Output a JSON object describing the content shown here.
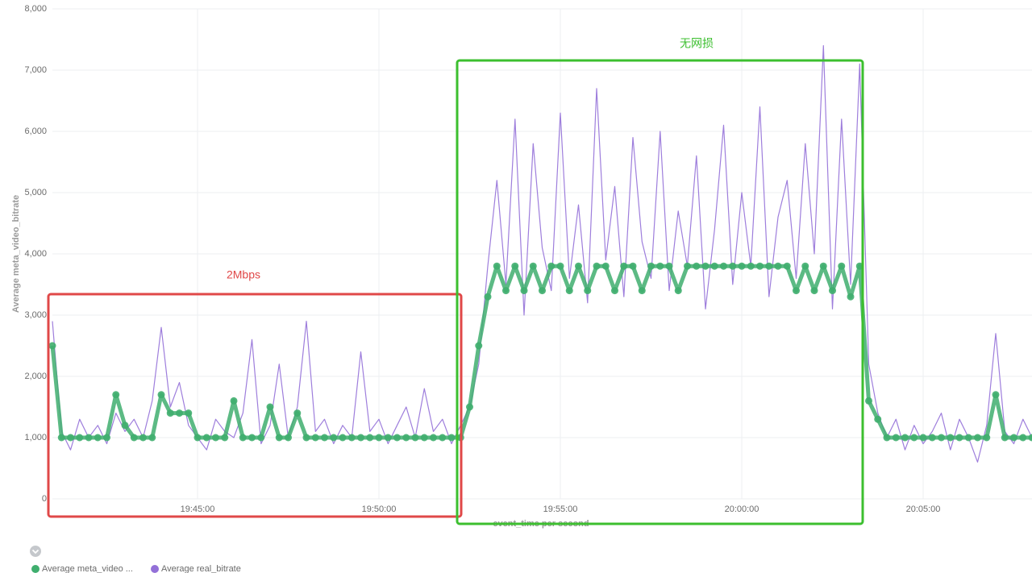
{
  "chart_data": {
    "type": "line",
    "ylabel": "Average meta_video_bitrate",
    "xlabel": "event_time per second",
    "xlim": [
      "19:41:00",
      "20:08:00"
    ],
    "xticks": [
      "19:45:00",
      "19:50:00",
      "19:55:00",
      "20:00:00",
      "20:05:00"
    ],
    "ylim": [
      0,
      8000
    ],
    "yticks": [
      0,
      {
        "value": 1000,
        "label": "1,000"
      },
      {
        "value": 2000,
        "label": "2,000"
      },
      {
        "value": 3000,
        "label": "3,000"
      },
      {
        "value": 4000,
        "label": "4,000"
      },
      {
        "value": 5000,
        "label": "5,000"
      },
      {
        "value": 6000,
        "label": "6,000"
      },
      {
        "value": 7000,
        "label": "7,000"
      },
      {
        "value": 8000,
        "label": "8,000"
      }
    ],
    "grid": true,
    "x": [
      "19:41:00",
      "19:41:15",
      "19:41:30",
      "19:41:45",
      "19:42:00",
      "19:42:15",
      "19:42:30",
      "19:42:45",
      "19:43:00",
      "19:43:15",
      "19:43:30",
      "19:43:45",
      "19:44:00",
      "19:44:15",
      "19:44:30",
      "19:44:45",
      "19:45:00",
      "19:45:15",
      "19:45:30",
      "19:45:45",
      "19:46:00",
      "19:46:15",
      "19:46:30",
      "19:46:45",
      "19:47:00",
      "19:47:15",
      "19:47:30",
      "19:47:45",
      "19:48:00",
      "19:48:15",
      "19:48:30",
      "19:48:45",
      "19:49:00",
      "19:49:15",
      "19:49:30",
      "19:49:45",
      "19:50:00",
      "19:50:15",
      "19:50:30",
      "19:50:45",
      "19:51:00",
      "19:51:15",
      "19:51:30",
      "19:51:45",
      "19:52:00",
      "19:52:15",
      "19:52:30",
      "19:52:45",
      "19:53:00",
      "19:53:15",
      "19:53:30",
      "19:53:45",
      "19:54:00",
      "19:54:15",
      "19:54:30",
      "19:54:45",
      "19:55:00",
      "19:55:15",
      "19:55:30",
      "19:55:45",
      "19:56:00",
      "19:56:15",
      "19:56:30",
      "19:56:45",
      "19:57:00",
      "19:57:15",
      "19:57:30",
      "19:57:45",
      "19:58:00",
      "19:58:15",
      "19:58:30",
      "19:58:45",
      "19:59:00",
      "19:59:15",
      "19:59:30",
      "19:59:45",
      "20:00:00",
      "20:00:15",
      "20:00:30",
      "20:00:45",
      "20:01:00",
      "20:01:15",
      "20:01:30",
      "20:01:45",
      "20:02:00",
      "20:02:15",
      "20:02:30",
      "20:02:45",
      "20:03:00",
      "20:03:15",
      "20:03:30",
      "20:03:45",
      "20:04:00",
      "20:04:15",
      "20:04:30",
      "20:04:45",
      "20:05:00",
      "20:05:15",
      "20:05:30",
      "20:05:45",
      "20:06:00",
      "20:06:15",
      "20:06:30",
      "20:06:45",
      "20:07:00",
      "20:07:15",
      "20:07:30",
      "20:07:45",
      "20:08:00"
    ],
    "series": [
      {
        "name": "Average real_bitrate",
        "color": "#9370d8",
        "values": [
          2900,
          1100,
          800,
          1300,
          1000,
          1200,
          900,
          1400,
          1100,
          1300,
          1000,
          1600,
          2800,
          1500,
          1900,
          1200,
          1000,
          800,
          1300,
          1100,
          1000,
          1400,
          2600,
          900,
          1200,
          2200,
          1000,
          1500,
          2900,
          1100,
          1300,
          900,
          1200,
          1000,
          2400,
          1100,
          1300,
          900,
          1200,
          1500,
          1000,
          1800,
          1100,
          1300,
          900,
          1200,
          1500,
          2200,
          3800,
          5200,
          3500,
          6200,
          3000,
          5800,
          4100,
          3400,
          6300,
          3600,
          4800,
          3200,
          6700,
          3900,
          5100,
          3300,
          5900,
          4200,
          3600,
          6000,
          3400,
          4700,
          3800,
          5600,
          3100,
          4400,
          6100,
          3500,
          5000,
          3800,
          6400,
          3300,
          4600,
          5200,
          3600,
          5800,
          4000,
          7400,
          3100,
          6200,
          3500,
          7100,
          2200,
          1400,
          1000,
          1300,
          800,
          1200,
          900,
          1100,
          1400,
          800,
          1300,
          1000,
          600,
          1200,
          2700,
          1100,
          900,
          1300,
          1000
        ]
      },
      {
        "name": "Average meta_video ...",
        "color": "#3fae6e",
        "values": [
          2500,
          1000,
          1000,
          1000,
          1000,
          1000,
          1000,
          1700,
          1200,
          1000,
          1000,
          1000,
          1700,
          1400,
          1400,
          1400,
          1000,
          1000,
          1000,
          1000,
          1600,
          1000,
          1000,
          1000,
          1500,
          1000,
          1000,
          1400,
          1000,
          1000,
          1000,
          1000,
          1000,
          1000,
          1000,
          1000,
          1000,
          1000,
          1000,
          1000,
          1000,
          1000,
          1000,
          1000,
          1000,
          1000,
          1500,
          2500,
          3300,
          3800,
          3400,
          3800,
          3400,
          3800,
          3400,
          3800,
          3800,
          3400,
          3800,
          3400,
          3800,
          3800,
          3400,
          3800,
          3800,
          3400,
          3800,
          3800,
          3800,
          3400,
          3800,
          3800,
          3800,
          3800,
          3800,
          3800,
          3800,
          3800,
          3800,
          3800,
          3800,
          3800,
          3400,
          3800,
          3400,
          3800,
          3400,
          3800,
          3300,
          3800,
          1600,
          1300,
          1000,
          1000,
          1000,
          1000,
          1000,
          1000,
          1000,
          1000,
          1000,
          1000,
          1000,
          1000,
          1700,
          1000,
          1000,
          1000,
          1000
        ]
      }
    ],
    "annotations": [
      {
        "text": "2Mbps",
        "color": "#e04848"
      },
      {
        "text": "无网损",
        "color": "#3cbf2f"
      }
    ]
  }
}
